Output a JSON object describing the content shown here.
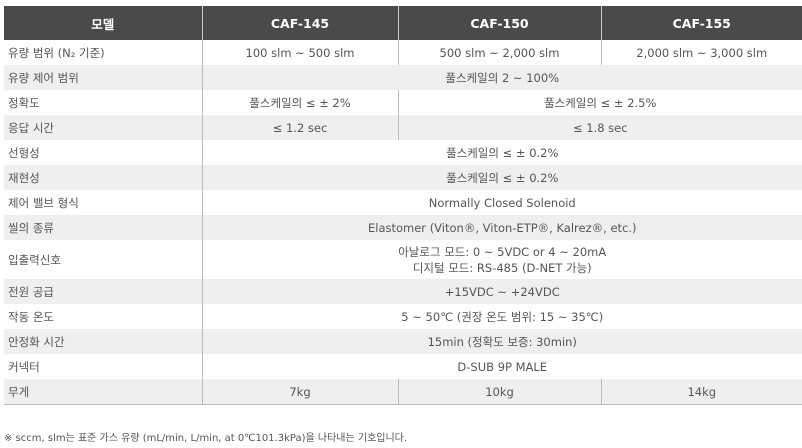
{
  "headers": [
    "모델",
    "CAF-145",
    "CAF-150",
    "CAF-155"
  ],
  "rows": {
    "flow_range": {
      "label": "유량 범위 (N₂ 기준)",
      "v": [
        "100 slm ~ 500 slm",
        "500 slm ~ 2,000 slm",
        "2,000 slm ~ 3,000 slm"
      ]
    },
    "control_range": {
      "label": "유량 제어 범위",
      "v": "풀스케일의 2 ~ 100%"
    },
    "accuracy": {
      "label": "정확도",
      "v": [
        "풀스케일의 ≤ ± 2%",
        "풀스케일의 ≤ ± 2.5%"
      ]
    },
    "response": {
      "label": "응답 시간",
      "v": [
        "≤ 1.2 sec",
        "≤ 1.8 sec"
      ]
    },
    "linearity": {
      "label": "선형성",
      "v": "풀스케일의 ≤ ± 0.2%"
    },
    "repeatability": {
      "label": "재현성",
      "v": "풀스케일의 ≤ ± 0.2%"
    },
    "valve": {
      "label": "제어 밸브 형식",
      "v": "Normally Closed Solenoid"
    },
    "seal": {
      "label": "씰의 종류",
      "v": "Elastomer (Viton®, Viton-ETP®, Kalrez®, etc.)"
    },
    "io": {
      "label": "입출력신호",
      "v": [
        "아날로그 모드: 0 ~ 5VDC or 4 ~ 20mA",
        "디지털 모드: RS-485 (D-NET 가능)"
      ]
    },
    "power": {
      "label": "전원 공급",
      "v": "+15VDC ~ +24VDC"
    },
    "temp": {
      "label": "작동 온도",
      "v": "5 ~ 50℃ (권장 온도 범위: 15 ~ 35℃)"
    },
    "warmup": {
      "label": "안정화 시간",
      "v": "15min (정확도 보증: 30min)"
    },
    "connector": {
      "label": "커넥터",
      "v": "D-SUB 9P MALE"
    },
    "weight": {
      "label": "무게",
      "v": [
        "7kg",
        "10kg",
        "14kg"
      ]
    }
  },
  "footnote": "※ sccm, slm는 표준 가스 유량 (mL/min, L/min, at 0℃101.3kPa)을 나타내는 기호입니다."
}
